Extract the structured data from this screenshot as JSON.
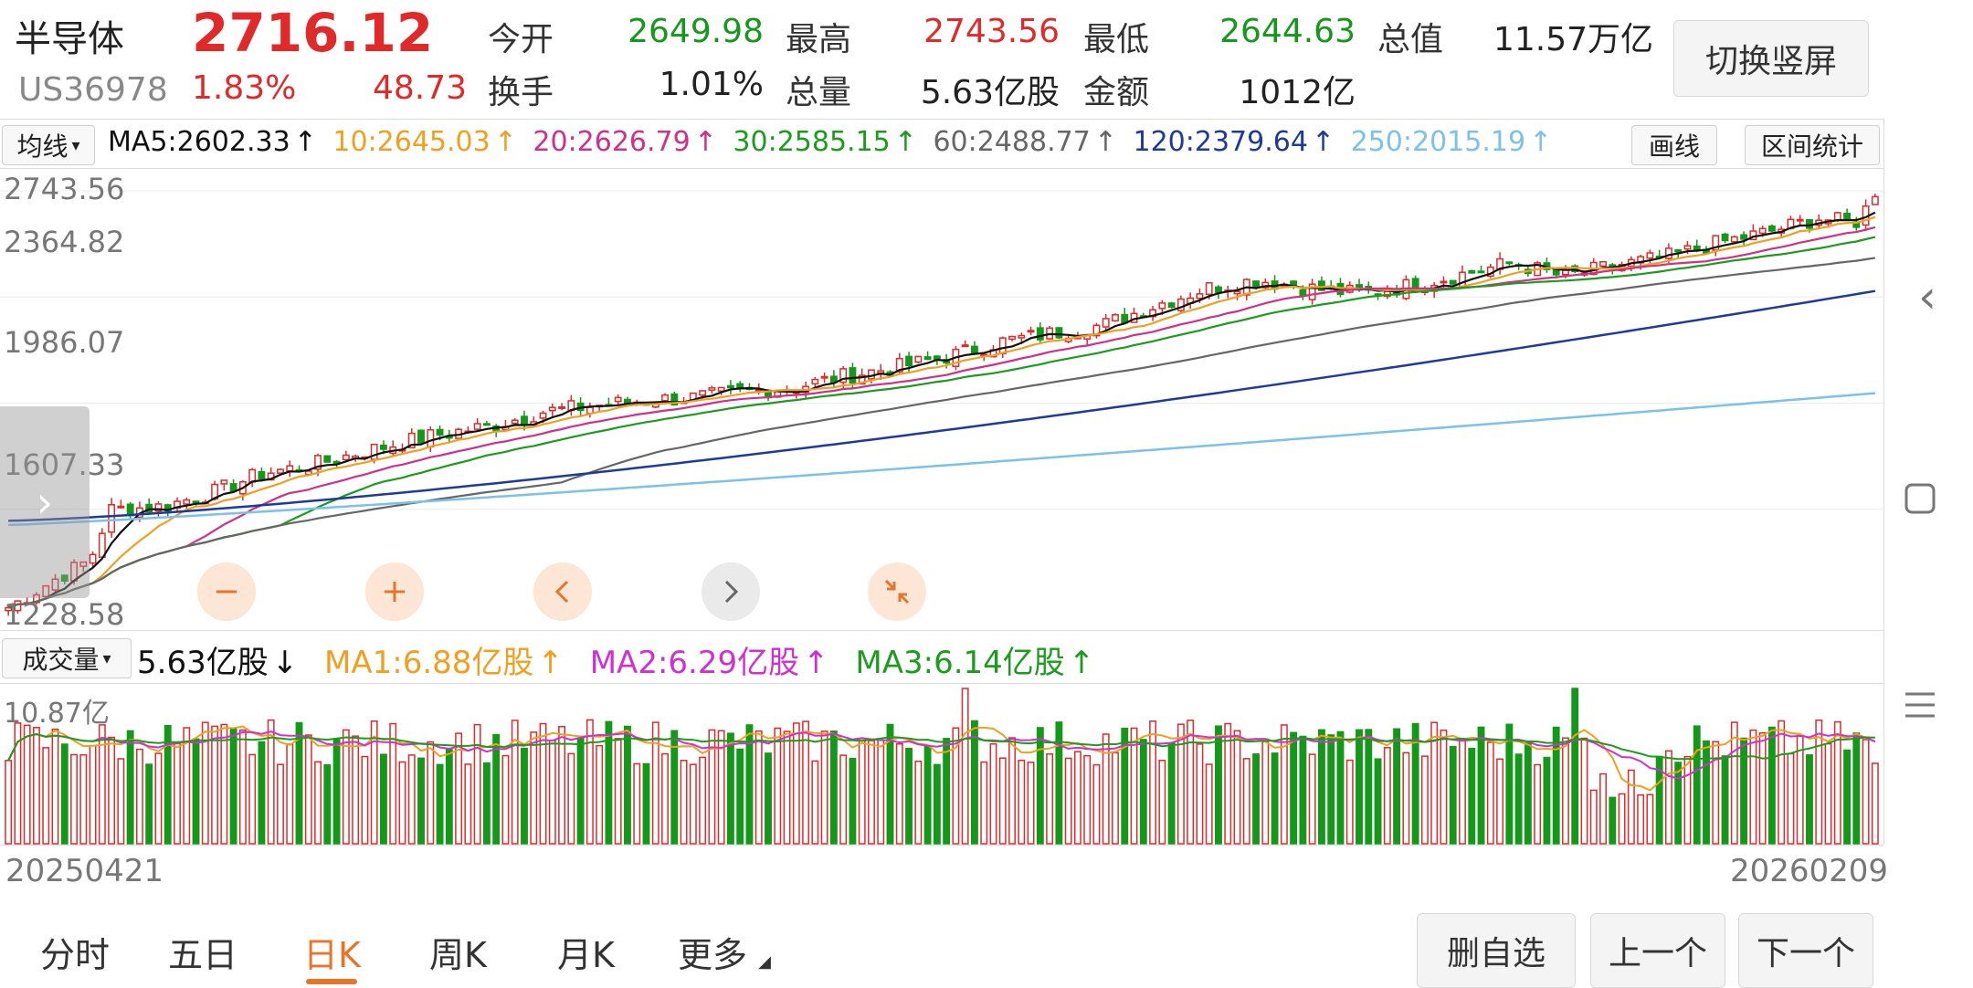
{
  "header": {
    "name": "半导体",
    "price": "2716.12",
    "code": "US36978",
    "change_pct": "1.83%",
    "change_amt": "48.73",
    "open_label": "今开",
    "open_val": "2649.98",
    "high_label": "最高",
    "high_val": "2743.56",
    "low_label": "最低",
    "low_val": "2644.63",
    "mcap_label": "总值",
    "mcap_val": "11.57万亿",
    "turnover_label": "换手",
    "turnover_val": "1.01%",
    "volume_label": "总量",
    "volume_val": "5.63亿股",
    "amount_label": "金额",
    "amount_val": "1012亿",
    "switch_btn": "切换竖屏"
  },
  "ma_bar": {
    "selector": "均线",
    "ma5": "MA5:2602.33",
    "ma10": "10:2645.03",
    "ma20": "20:2626.79",
    "ma30": "30:2585.15",
    "ma60": "60:2488.77",
    "ma120": "120:2379.64",
    "ma250": "250:2015.19",
    "arrow": "↑",
    "draw_btn": "画线",
    "stats_btn": "区间统计"
  },
  "price_axis": {
    "top": "2743.56",
    "l2": "2364.82",
    "l3": "1986.07",
    "l4": "1607.33",
    "bottom": "1228.58"
  },
  "volume_bar": {
    "selector": "成交量",
    "current": "5.63亿股",
    "current_arrow": "↓",
    "ma1": "MA1:6.88亿股",
    "ma2": "MA2:6.29亿股",
    "ma3": "MA3:6.14亿股",
    "arrow": "↑",
    "max": "10.87亿"
  },
  "dates": {
    "start": "20250421",
    "end": "20260209"
  },
  "tabs": [
    "分时",
    "五日",
    "日K",
    "周K",
    "月K",
    "更多"
  ],
  "active_tab": "日K",
  "actions": {
    "remove_fav": "删自选",
    "prev": "上一个",
    "next": "下一个"
  },
  "icons": {
    "zoom_out": "minus-icon",
    "zoom_in": "plus-icon",
    "left": "chevron-left-icon",
    "right": "chevron-right-icon",
    "reset": "compress-icon"
  },
  "colors": {
    "up": "#e02a2a",
    "down": "#13981a",
    "ma5": "#111111",
    "ma10": "#f0a020",
    "ma20": "#d0308a",
    "ma30": "#1c9c1c",
    "ma60": "#666666",
    "ma120": "#1e3a9a",
    "ma250": "#7cc0ec"
  },
  "chart_data": {
    "type": "candlestick",
    "price_range": [
      1228.58,
      2743.56
    ],
    "volume_max_label": "10.87亿",
    "x_range": [
      "20250421",
      "20260209"
    ],
    "ma_last": {
      "MA5": 2602.33,
      "MA10": 2645.03,
      "MA20": 2626.79,
      "MA30": 2585.15,
      "MA60": 2488.77,
      "MA120": 2379.64,
      "MA250": 2015.19
    },
    "close_keypoints": [
      [
        0,
        1250
      ],
      [
        10,
        1360
      ],
      [
        16,
        1420
      ],
      [
        20,
        1600
      ],
      [
        30,
        1610
      ],
      [
        40,
        1660
      ],
      [
        50,
        1730
      ],
      [
        60,
        1760
      ],
      [
        68,
        1800
      ],
      [
        75,
        1830
      ],
      [
        85,
        1870
      ],
      [
        95,
        1900
      ],
      [
        105,
        1950
      ],
      [
        115,
        1970
      ],
      [
        125,
        1990
      ],
      [
        135,
        2000
      ],
      [
        145,
        2020
      ],
      [
        155,
        2040
      ],
      [
        165,
        2080
      ],
      [
        175,
        2110
      ],
      [
        185,
        2150
      ],
      [
        195,
        2200
      ],
      [
        205,
        2230
      ],
      [
        215,
        2260
      ],
      [
        225,
        2330
      ],
      [
        235,
        2390
      ],
      [
        245,
        2420
      ],
      [
        255,
        2390
      ],
      [
        265,
        2370
      ],
      [
        275,
        2400
      ],
      [
        285,
        2440
      ],
      [
        295,
        2480
      ],
      [
        305,
        2430
      ],
      [
        315,
        2470
      ],
      [
        325,
        2500
      ],
      [
        335,
        2550
      ],
      [
        345,
        2590
      ],
      [
        355,
        2640
      ],
      [
        362,
        2620
      ],
      [
        366,
        2716
      ]
    ]
  }
}
